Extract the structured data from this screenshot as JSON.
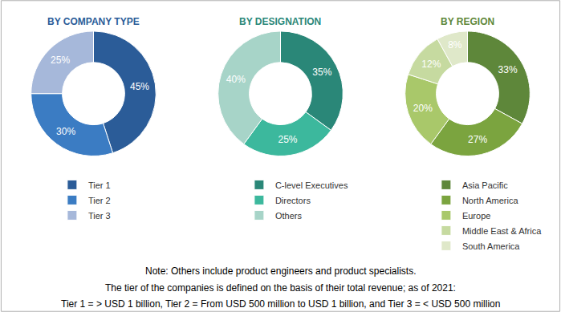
{
  "chart_data": [
    {
      "type": "pie",
      "title": "BY COMPANY TYPE",
      "categories": [
        "Tier 1",
        "Tier 2",
        "Tier 3"
      ],
      "values": [
        45,
        30,
        25
      ],
      "value_labels": [
        "45%",
        "30%",
        "25%"
      ],
      "colors": [
        "#2b5c98",
        "#3b7cc3",
        "#a6b8da"
      ],
      "data_labels": true,
      "legend": "bottom"
    },
    {
      "type": "pie",
      "title": "BY DESIGNATION",
      "categories": [
        "C-level Executives",
        "Directors",
        "Others"
      ],
      "values": [
        35,
        25,
        40
      ],
      "value_labels": [
        "35%",
        "25%",
        "40%"
      ],
      "colors": [
        "#2a8778",
        "#3cb89d",
        "#a7d4c8"
      ],
      "data_labels": true,
      "legend": "bottom"
    },
    {
      "type": "pie",
      "title": "BY REGION",
      "categories": [
        "Asia Pacific",
        "North America",
        "Europe",
        "Middle East & Africa",
        "South America"
      ],
      "values": [
        33,
        27,
        20,
        12,
        8
      ],
      "value_labels": [
        "33%",
        "27%",
        "20%",
        "12%",
        "8%"
      ],
      "colors": [
        "#5e873a",
        "#7ba43f",
        "#a9c86a",
        "#c6daa0",
        "#dfe8c9"
      ],
      "data_labels": true,
      "legend": "bottom"
    }
  ],
  "note": [
    "Note: Others include product engineers and product specialists.",
    "The tier of the companies is defined on the basis of their total revenue; as of 2021:",
    "Tier 1 = > USD 1 billion, Tier 2 = From USD 500 million to USD 1 billion, and Tier 3 = < USD 500 million"
  ]
}
